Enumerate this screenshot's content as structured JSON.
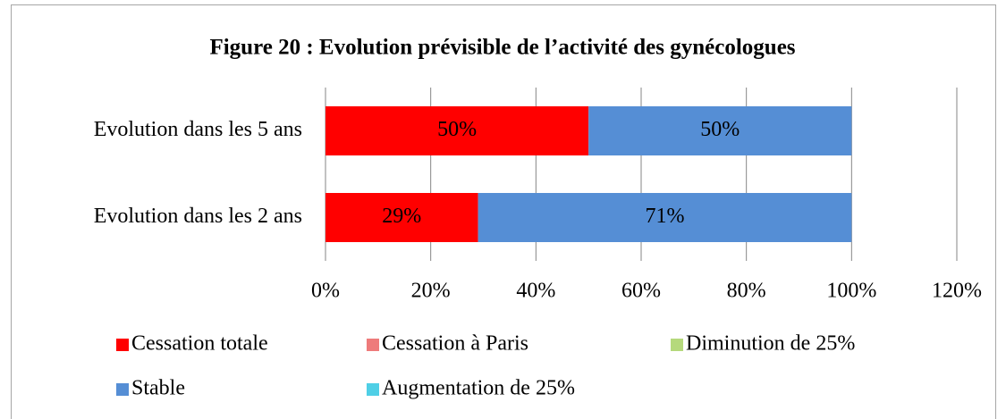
{
  "chart_data": {
    "type": "bar",
    "orientation": "horizontal",
    "stacked": true,
    "title": "Figure 20 : Evolution prévisible de l’activité des gynécologues",
    "categories": [
      "Evolution dans les 5 ans",
      "Evolution dans les 2 ans"
    ],
    "series": [
      {
        "name": "Cessation totale",
        "color": "#ff0000",
        "values": [
          50,
          29
        ],
        "value_labels": [
          "50%",
          "29%"
        ]
      },
      {
        "name": "Cessation à Paris",
        "color": "#ee7b7b",
        "values": [
          0,
          0
        ]
      },
      {
        "name": "Diminution de 25%",
        "color": "#b5d97c",
        "values": [
          0,
          0
        ]
      },
      {
        "name": "Stable",
        "color": "#558ed5",
        "values": [
          50,
          71
        ],
        "value_labels": [
          "50%",
          "71%"
        ]
      },
      {
        "name": "Augmentation de 25%",
        "color": "#4fcfe6",
        "values": [
          0,
          0
        ]
      }
    ],
    "xlim": [
      0,
      120
    ],
    "xticks": [
      {
        "value": 0,
        "label": "0%"
      },
      {
        "value": 20,
        "label": "20%"
      },
      {
        "value": 40,
        "label": "40%"
      },
      {
        "value": 60,
        "label": "60%"
      },
      {
        "value": 80,
        "label": "80%"
      },
      {
        "value": 100,
        "label": "100%"
      },
      {
        "value": 120,
        "label": "120%"
      }
    ],
    "grid": true,
    "legend": "bottom"
  }
}
